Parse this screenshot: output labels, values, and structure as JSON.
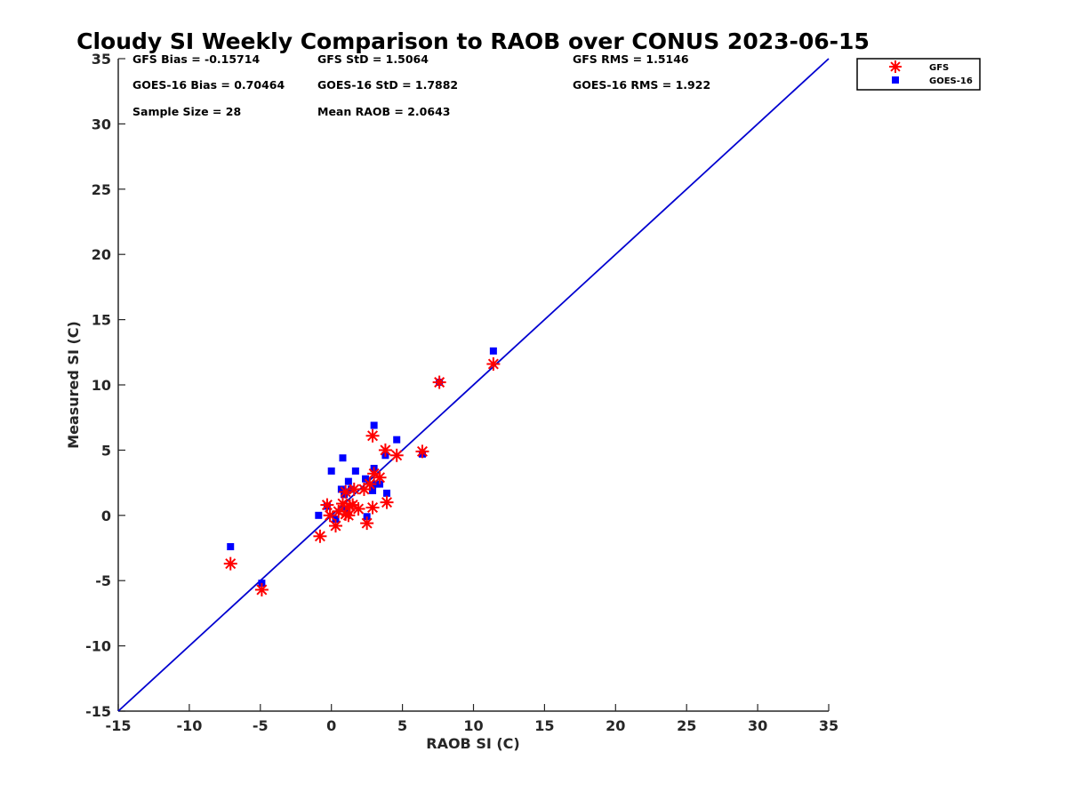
{
  "chart_data": {
    "type": "scatter",
    "title": "Cloudy SI Weekly Comparison to RAOB over CONUS 2023-06-15",
    "xlabel": "RAOB SI (C)",
    "ylabel": "Measured SI (C)",
    "xlim": [
      -15,
      35
    ],
    "ylim": [
      -15,
      35
    ],
    "xticks": [
      -15,
      -10,
      -5,
      0,
      5,
      10,
      15,
      20,
      25,
      30,
      35
    ],
    "yticks": [
      -15,
      -10,
      -5,
      0,
      5,
      10,
      15,
      20,
      25,
      30,
      35
    ],
    "grid": false,
    "legend_position": "top-right, outside",
    "reference_line": {
      "x": [
        -15,
        35
      ],
      "y": [
        -15,
        35
      ],
      "color": "#0000d0"
    },
    "stats": {
      "gfs_bias": "GFS Bias = -0.15714",
      "gfs_std": "GFS StD = 1.5064",
      "gfs_rms": "GFS RMS = 1.5146",
      "goes_bias": "GOES-16 Bias = 0.70464",
      "goes_std": "GOES-16 StD = 1.7882",
      "goes_rms": "GOES-16 RMS = 1.922",
      "sample_size": "Sample Size = 28",
      "mean_raob": "Mean RAOB = 2.0643"
    },
    "series": [
      {
        "name": "GFS",
        "marker": "asterisk",
        "color": "#ff0000",
        "points": [
          [
            -7.1,
            -3.7
          ],
          [
            -4.9,
            -5.7
          ],
          [
            -0.8,
            -1.6
          ],
          [
            -0.3,
            0.8
          ],
          [
            -0.1,
            0.0
          ],
          [
            0.3,
            -0.8
          ],
          [
            0.8,
            0.9
          ],
          [
            1.0,
            0.1
          ],
          [
            1.2,
            0.0
          ],
          [
            1.3,
            0.7
          ],
          [
            1.5,
            0.8
          ],
          [
            1.6,
            2.0
          ],
          [
            2.3,
            2.0
          ],
          [
            2.5,
            -0.6
          ],
          [
            2.9,
            0.6
          ],
          [
            2.9,
            6.1
          ],
          [
            3.0,
            3.2
          ],
          [
            3.4,
            2.9
          ],
          [
            3.8,
            5.0
          ],
          [
            3.9,
            1.0
          ],
          [
            4.6,
            4.6
          ],
          [
            6.4,
            4.9
          ],
          [
            7.6,
            10.2
          ],
          [
            11.4,
            11.6
          ],
          [
            1.0,
            1.8
          ],
          [
            2.7,
            2.4
          ],
          [
            0.5,
            0.3
          ],
          [
            1.9,
            0.5
          ]
        ]
      },
      {
        "name": "GOES-16",
        "marker": "square",
        "color": "#0000ff",
        "points": [
          [
            -7.1,
            -2.4
          ],
          [
            -4.9,
            -5.2
          ],
          [
            -0.9,
            0.0
          ],
          [
            -0.3,
            0.7
          ],
          [
            0.0,
            3.4
          ],
          [
            0.3,
            -0.3
          ],
          [
            0.7,
            2.0
          ],
          [
            0.8,
            4.4
          ],
          [
            1.0,
            1.8
          ],
          [
            1.1,
            0.4
          ],
          [
            1.2,
            2.6
          ],
          [
            1.4,
            2.0
          ],
          [
            1.7,
            3.4
          ],
          [
            2.4,
            2.8
          ],
          [
            2.5,
            -0.1
          ],
          [
            2.9,
            1.9
          ],
          [
            3.0,
            3.6
          ],
          [
            3.0,
            6.9
          ],
          [
            3.2,
            2.4
          ],
          [
            3.4,
            2.4
          ],
          [
            3.8,
            4.6
          ],
          [
            3.9,
            1.7
          ],
          [
            4.6,
            5.8
          ],
          [
            6.4,
            4.7
          ],
          [
            7.6,
            10.2
          ],
          [
            11.4,
            12.6
          ],
          [
            2.9,
            2.3
          ],
          [
            0.9,
            1.6
          ]
        ]
      }
    ]
  }
}
